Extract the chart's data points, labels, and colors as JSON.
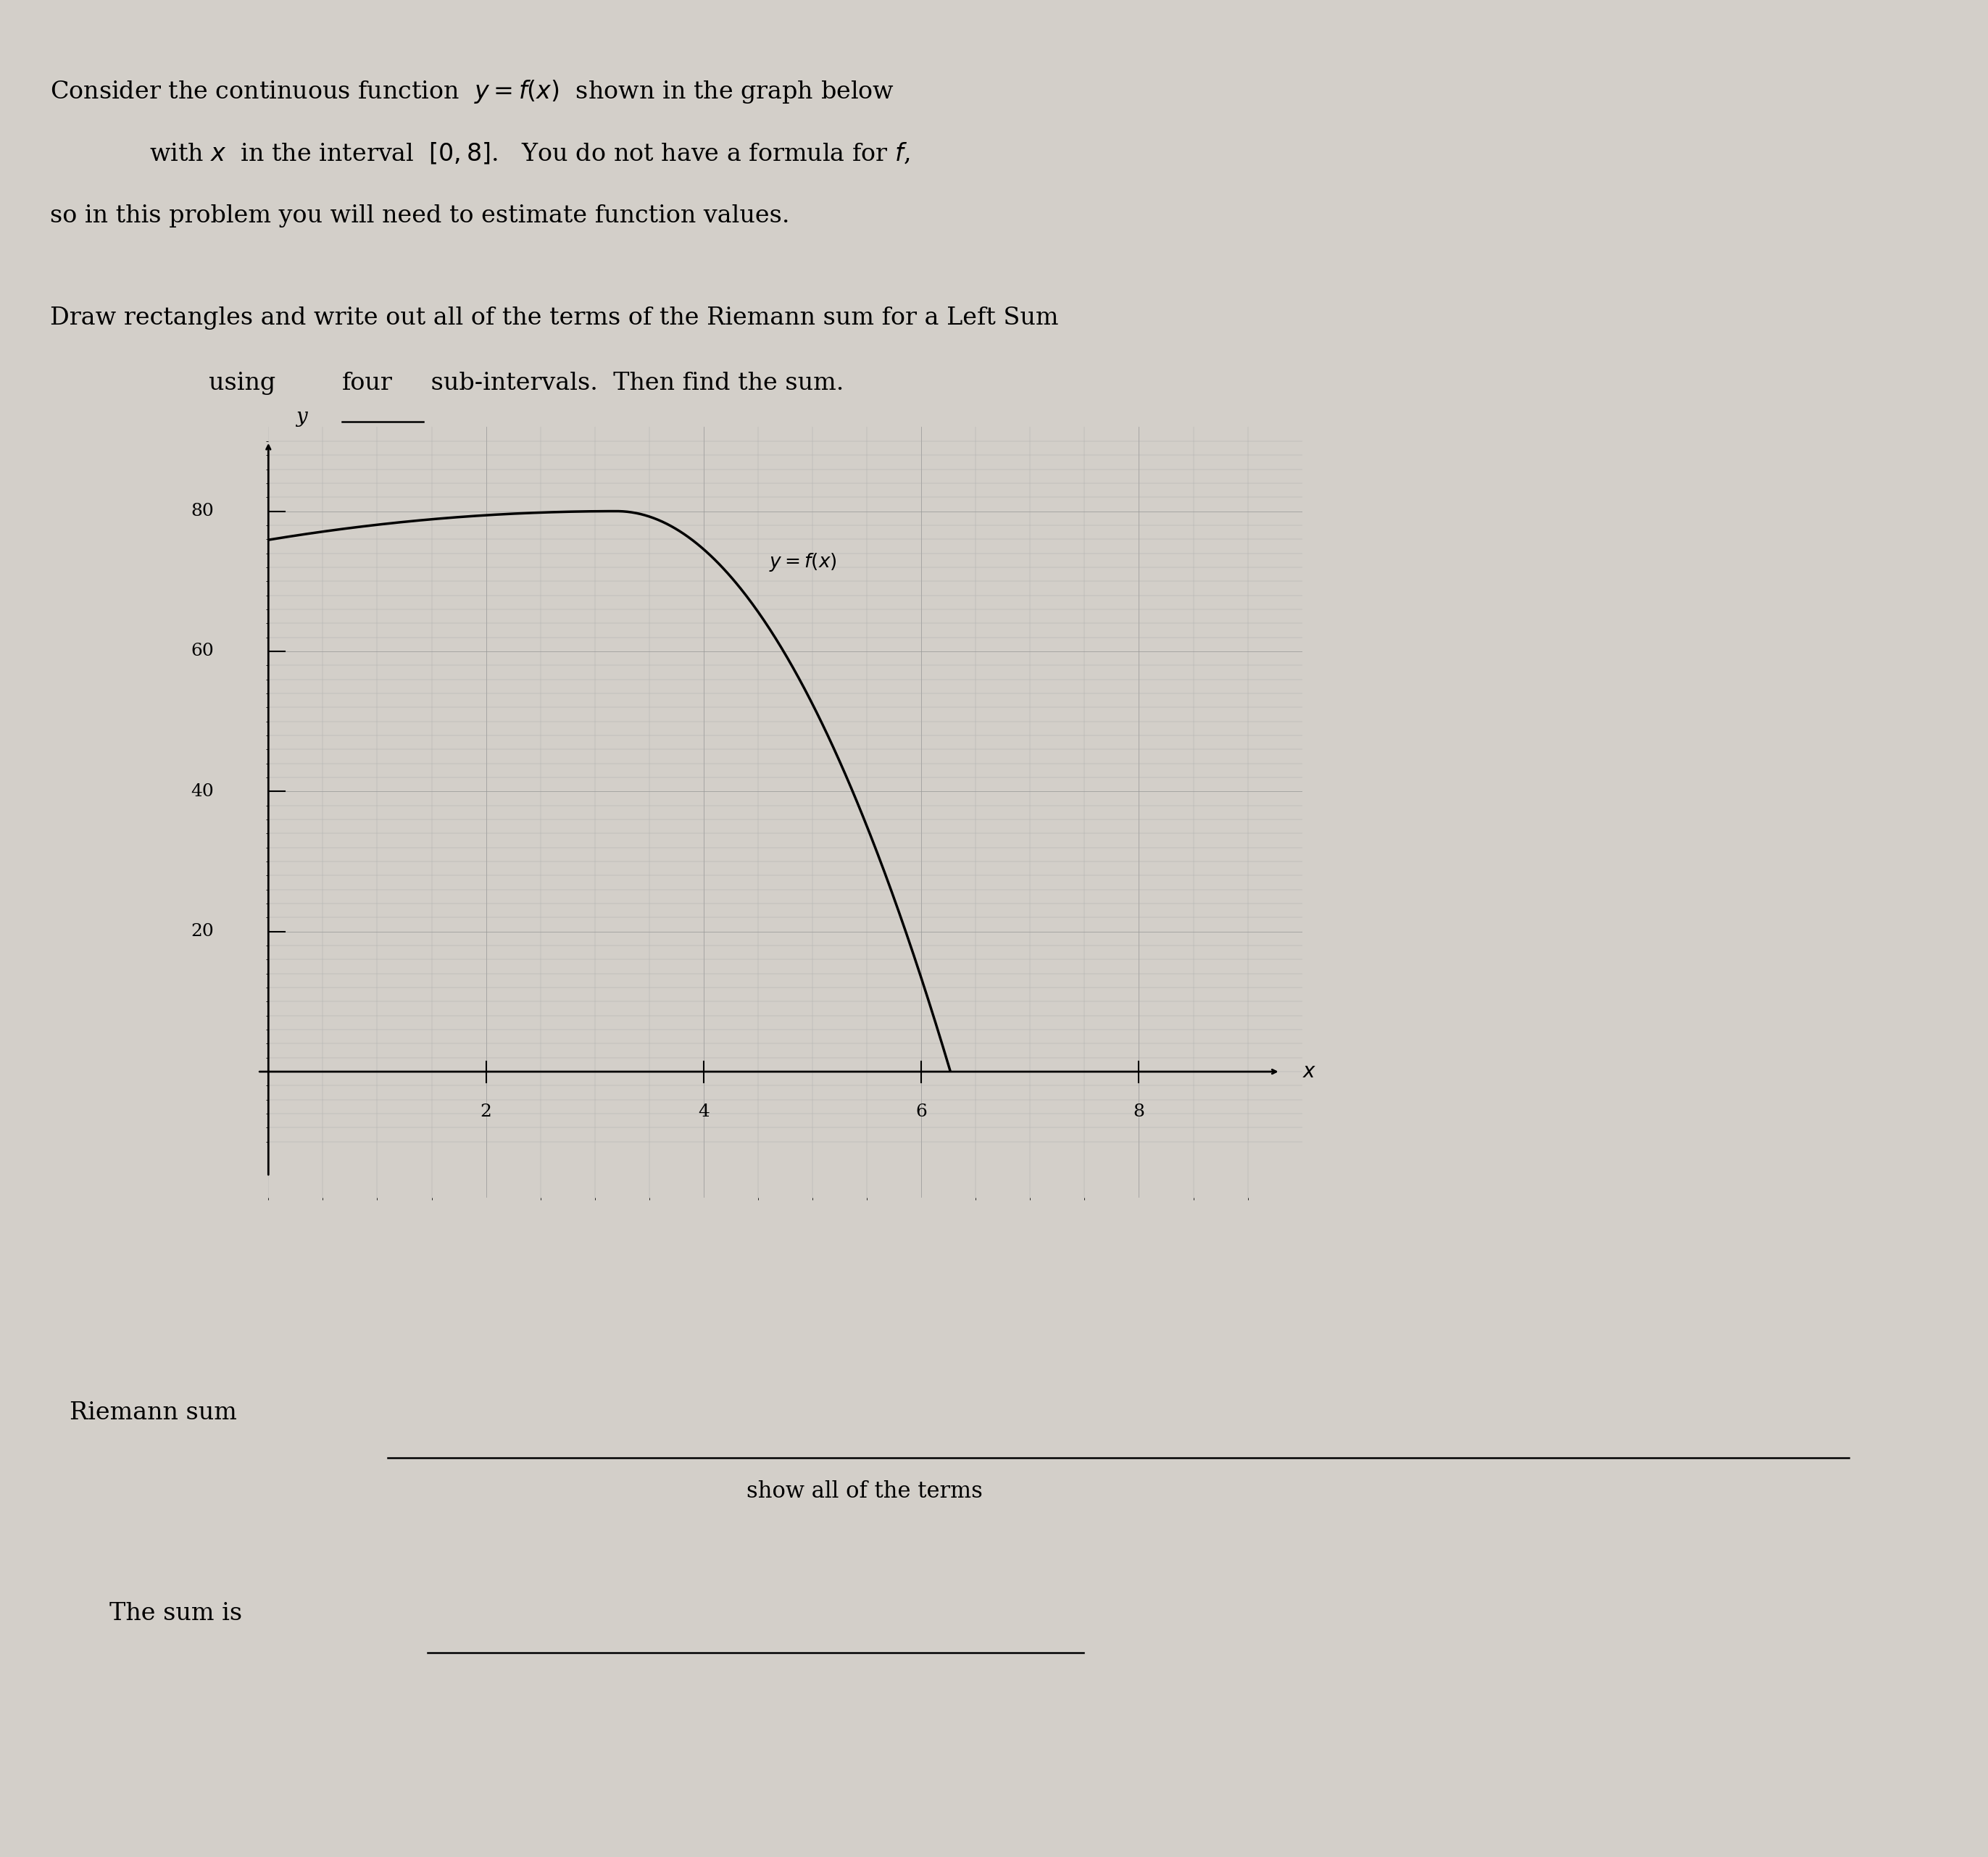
{
  "bg_color": "#d3cfc9",
  "title_line1": "Consider the continuous function  $y = f(x)$  shown in the graph below",
  "title_line2": "with $x$  in the interval  $[0, 8]$.   You do not have a formula for $f$,",
  "title_line3": "so in this problem you will need to estimate function values.",
  "line2_text": "Draw rectangles and write out all of the terms of the Riemann sum for a Left Sum",
  "line2b_text": "using four sub-intervals.  Then find the sum.",
  "graph_ylabel": "y",
  "graph_label": "$y = f(x)$",
  "x_ticks": [
    2,
    4,
    6,
    8
  ],
  "y_ticks": [
    20,
    40,
    60,
    80
  ],
  "xlim": [
    0,
    9.5
  ],
  "ylim": [
    -18,
    92
  ],
  "riemann_label": "Riemann sum",
  "riemann_sub": "show all of the terms",
  "sum_label": "The sum is"
}
